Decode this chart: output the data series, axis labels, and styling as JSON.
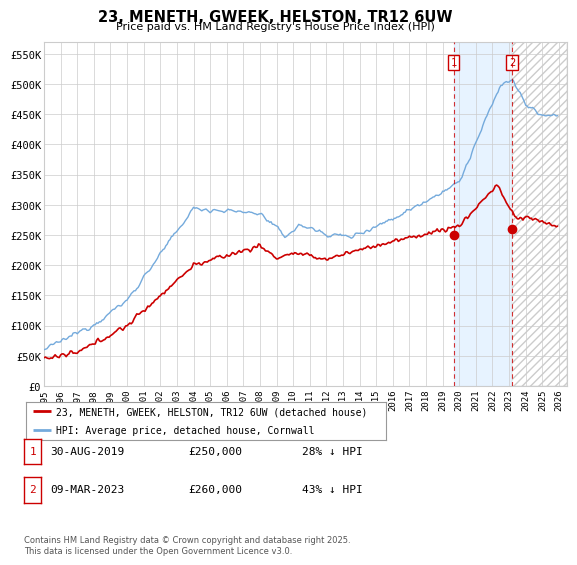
{
  "title": "23, MENETH, GWEEK, HELSTON, TR12 6UW",
  "subtitle": "Price paid vs. HM Land Registry's House Price Index (HPI)",
  "ylabel_ticks": [
    "£0",
    "£50K",
    "£100K",
    "£150K",
    "£200K",
    "£250K",
    "£300K",
    "£350K",
    "£400K",
    "£450K",
    "£500K",
    "£550K"
  ],
  "ytick_values": [
    0,
    50000,
    100000,
    150000,
    200000,
    250000,
    300000,
    350000,
    400000,
    450000,
    500000,
    550000
  ],
  "ylim": [
    0,
    570000
  ],
  "xlim_start": 1995.0,
  "xlim_end": 2026.5,
  "hpi_color": "#74aadc",
  "price_color": "#cc0000",
  "vline_color": "#cc0000",
  "sale1_x": 2019.665,
  "sale1_y": 250000,
  "sale2_x": 2023.18,
  "sale2_y": 260000,
  "vline1_x": 2019.665,
  "vline2_x": 2023.18,
  "legend_label_red": "23, MENETH, GWEEK, HELSTON, TR12 6UW (detached house)",
  "legend_label_blue": "HPI: Average price, detached house, Cornwall",
  "sale1_date": "30-AUG-2019",
  "sale1_price": "£250,000",
  "sale1_hpi": "28% ↓ HPI",
  "sale2_date": "09-MAR-2023",
  "sale2_price": "£260,000",
  "sale2_hpi": "43% ↓ HPI",
  "footnote": "Contains HM Land Registry data © Crown copyright and database right 2025.\nThis data is licensed under the Open Government Licence v3.0.",
  "bg_color": "#ffffff",
  "plot_bg_color": "#ffffff",
  "grid_color": "#cccccc",
  "shaded_region_color": "#ddeeff",
  "hatch_color": "#cccccc"
}
